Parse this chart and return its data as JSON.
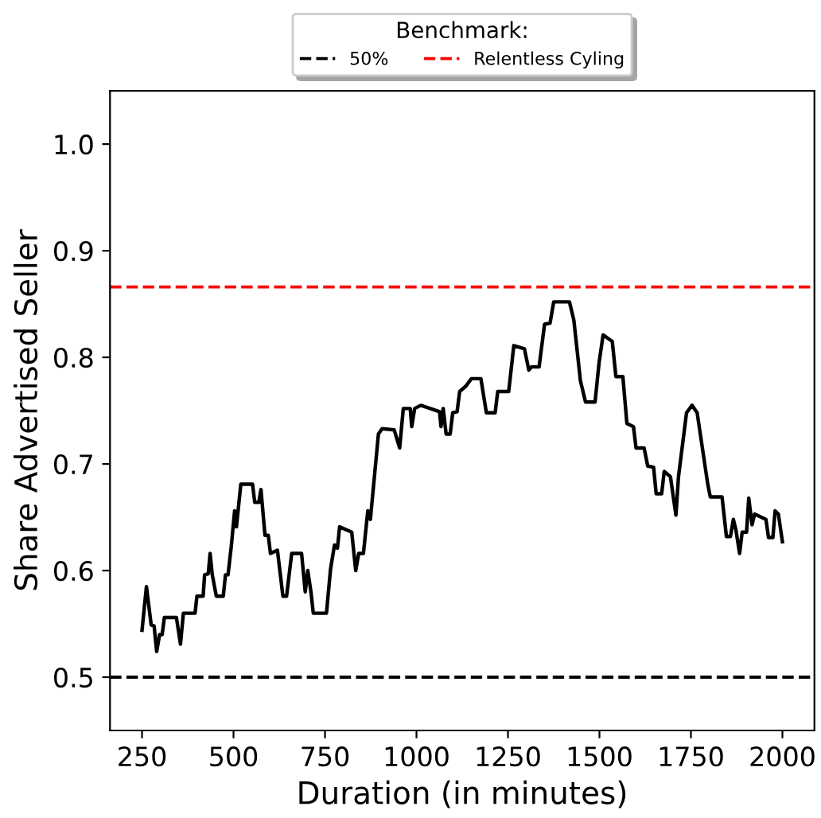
{
  "chart_data": {
    "type": "line",
    "xlabel": "Duration (in minutes)",
    "ylabel": "Share Advertised Seller",
    "x": [
      250,
      262,
      275,
      283,
      290,
      298,
      305,
      311,
      344,
      355,
      363,
      395,
      400,
      417,
      421,
      431,
      436,
      442,
      453,
      472,
      478,
      485,
      494,
      503,
      508,
      520,
      552,
      558,
      569,
      575,
      586,
      595,
      601,
      620,
      635,
      645,
      659,
      686,
      696,
      703,
      712,
      718,
      754,
      765,
      776,
      784,
      790,
      823,
      834,
      842,
      855,
      867,
      874,
      896,
      906,
      939,
      954,
      964,
      983,
      987,
      995,
      1012,
      1063,
      1067,
      1073,
      1081,
      1092,
      1099,
      1111,
      1118,
      1135,
      1150,
      1176,
      1191,
      1215,
      1222,
      1252,
      1266,
      1295,
      1307,
      1314,
      1335,
      1350,
      1365,
      1375,
      1418,
      1430,
      1448,
      1462,
      1488,
      1499,
      1510,
      1535,
      1545,
      1564,
      1575,
      1593,
      1600,
      1622,
      1632,
      1648,
      1655,
      1670,
      1677,
      1694,
      1709,
      1716,
      1738,
      1753,
      1767,
      1796,
      1803,
      1835,
      1847,
      1858,
      1866,
      1873,
      1883,
      1890,
      1902,
      1908,
      1917,
      1924,
      1955,
      1962,
      1974,
      1980,
      1989,
      2000
    ],
    "series": [
      {
        "color": "#000000",
        "values": [
          0.544,
          0.585,
          0.549,
          0.548,
          0.524,
          0.54,
          0.54,
          0.556,
          0.556,
          0.531,
          0.56,
          0.56,
          0.576,
          0.576,
          0.596,
          0.597,
          0.616,
          0.596,
          0.576,
          0.576,
          0.596,
          0.596,
          0.623,
          0.656,
          0.641,
          0.681,
          0.681,
          0.664,
          0.664,
          0.676,
          0.633,
          0.633,
          0.616,
          0.619,
          0.576,
          0.576,
          0.616,
          0.616,
          0.58,
          0.6,
          0.579,
          0.56,
          0.56,
          0.601,
          0.624,
          0.621,
          0.641,
          0.636,
          0.6,
          0.616,
          0.616,
          0.656,
          0.648,
          0.728,
          0.733,
          0.732,
          0.715,
          0.752,
          0.752,
          0.735,
          0.752,
          0.755,
          0.749,
          0.735,
          0.752,
          0.728,
          0.728,
          0.748,
          0.749,
          0.768,
          0.773,
          0.78,
          0.78,
          0.748,
          0.748,
          0.768,
          0.768,
          0.811,
          0.808,
          0.788,
          0.791,
          0.791,
          0.831,
          0.832,
          0.852,
          0.852,
          0.835,
          0.778,
          0.758,
          0.758,
          0.795,
          0.821,
          0.815,
          0.782,
          0.782,
          0.738,
          0.735,
          0.715,
          0.715,
          0.698,
          0.697,
          0.672,
          0.672,
          0.693,
          0.688,
          0.652,
          0.688,
          0.748,
          0.755,
          0.748,
          0.681,
          0.669,
          0.669,
          0.632,
          0.632,
          0.648,
          0.638,
          0.616,
          0.636,
          0.636,
          0.668,
          0.643,
          0.653,
          0.648,
          0.631,
          0.631,
          0.656,
          0.653,
          0.627
        ]
      }
    ],
    "xlim": [
      162.5,
      2087.5
    ],
    "xticks": [
      250,
      500,
      750,
      1000,
      1250,
      1500,
      1750,
      2000
    ],
    "ylim": [
      0.45,
      1.05
    ],
    "yticks": [
      0.5,
      0.6,
      0.7,
      0.8,
      0.9,
      {
        "value": 1,
        "label": "1.0"
      }
    ],
    "ref_lines": [
      {
        "axis": "y",
        "value": 0.5,
        "label": "50%",
        "color": "#000000",
        "line_style": "dashed"
      },
      {
        "axis": "y",
        "value": 0.866,
        "label": "Relentless Cyling",
        "color": "#ff0000",
        "line_style": "dashed"
      }
    ],
    "legend_title": "Benchmark:",
    "legend": "top",
    "grid": false,
    "line_style": "solid",
    "marker": "none"
  }
}
